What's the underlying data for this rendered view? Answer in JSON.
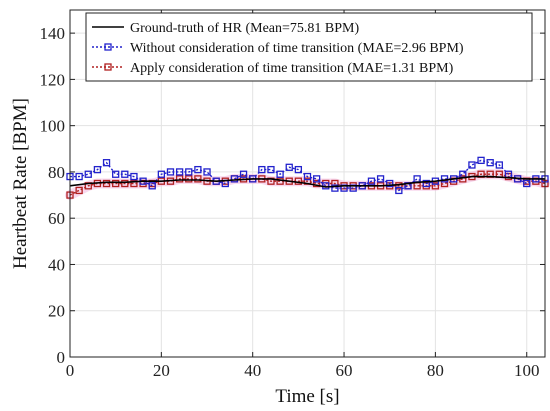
{
  "chart_data": {
    "type": "line",
    "xlabel": "Time [s]",
    "ylabel": "Heartbeat Rate [BPM]",
    "xlim": [
      0,
      104
    ],
    "ylim": [
      0,
      150
    ],
    "xticks": [
      0,
      20,
      40,
      60,
      80,
      100
    ],
    "yticks": [
      0,
      20,
      40,
      60,
      80,
      100,
      120,
      140
    ],
    "grid": true,
    "legend_position": "top",
    "series": [
      {
        "name": "Ground-truth of HR (Mean=75.81 BPM)",
        "color": "#000000",
        "style": "solid",
        "marker": "none",
        "x": [
          0,
          4,
          8,
          12,
          16,
          20,
          24,
          28,
          32,
          36,
          40,
          44,
          48,
          52,
          56,
          60,
          64,
          68,
          72,
          76,
          80,
          84,
          88,
          92,
          96,
          100,
          104
        ],
        "y": [
          74,
          75,
          75.5,
          75.5,
          76,
          76,
          76.5,
          76.5,
          76,
          76.5,
          77,
          77,
          76,
          75,
          73.5,
          74,
          74,
          74,
          74.5,
          75.5,
          76,
          77,
          78,
          78,
          77.5,
          77,
          77
        ]
      },
      {
        "name": "Without consideration of time transition (MAE=2.96 BPM)",
        "color": "#2222cc",
        "style": "dotted",
        "marker": "square",
        "x": [
          0,
          2,
          4,
          6,
          8,
          10,
          12,
          14,
          16,
          18,
          20,
          22,
          24,
          26,
          28,
          30,
          32,
          34,
          36,
          38,
          40,
          42,
          44,
          46,
          48,
          50,
          52,
          54,
          56,
          58,
          60,
          62,
          64,
          66,
          68,
          70,
          72,
          74,
          76,
          78,
          80,
          82,
          84,
          86,
          88,
          90,
          92,
          94,
          96,
          98,
          100,
          102,
          104
        ],
        "y": [
          78,
          78,
          79,
          81,
          84,
          79,
          79,
          78,
          76,
          74,
          79,
          80,
          80,
          80,
          81,
          80,
          76,
          75,
          77,
          79,
          77,
          81,
          81,
          79,
          82,
          81,
          78,
          77,
          74,
          73,
          73,
          73,
          74,
          76,
          77,
          75,
          72,
          74,
          77,
          75,
          76,
          77,
          77,
          79,
          83,
          85,
          84,
          83,
          79,
          77,
          75,
          77,
          77
        ]
      },
      {
        "name": "Apply consideration of time transition (MAE=1.31 BPM)",
        "color": "#b02020",
        "style": "dotted",
        "marker": "square",
        "x": [
          0,
          2,
          4,
          6,
          8,
          10,
          12,
          14,
          16,
          18,
          20,
          22,
          24,
          26,
          28,
          30,
          32,
          34,
          36,
          38,
          40,
          42,
          44,
          46,
          48,
          50,
          52,
          54,
          56,
          58,
          60,
          62,
          64,
          66,
          68,
          70,
          72,
          74,
          76,
          78,
          80,
          82,
          84,
          86,
          88,
          90,
          92,
          94,
          96,
          98,
          100,
          102,
          104
        ],
        "y": [
          70,
          72,
          74,
          75,
          75,
          75,
          75,
          75,
          75,
          75,
          76,
          76,
          77,
          77,
          77,
          76,
          76,
          76,
          77,
          77,
          77,
          77,
          76,
          76,
          76,
          76,
          76,
          75,
          75,
          75,
          74,
          74,
          74,
          74,
          74,
          74,
          74,
          74,
          74,
          74,
          74,
          75,
          76,
          77,
          78,
          79,
          79,
          79,
          78,
          77,
          76,
          76,
          75
        ]
      }
    ]
  }
}
